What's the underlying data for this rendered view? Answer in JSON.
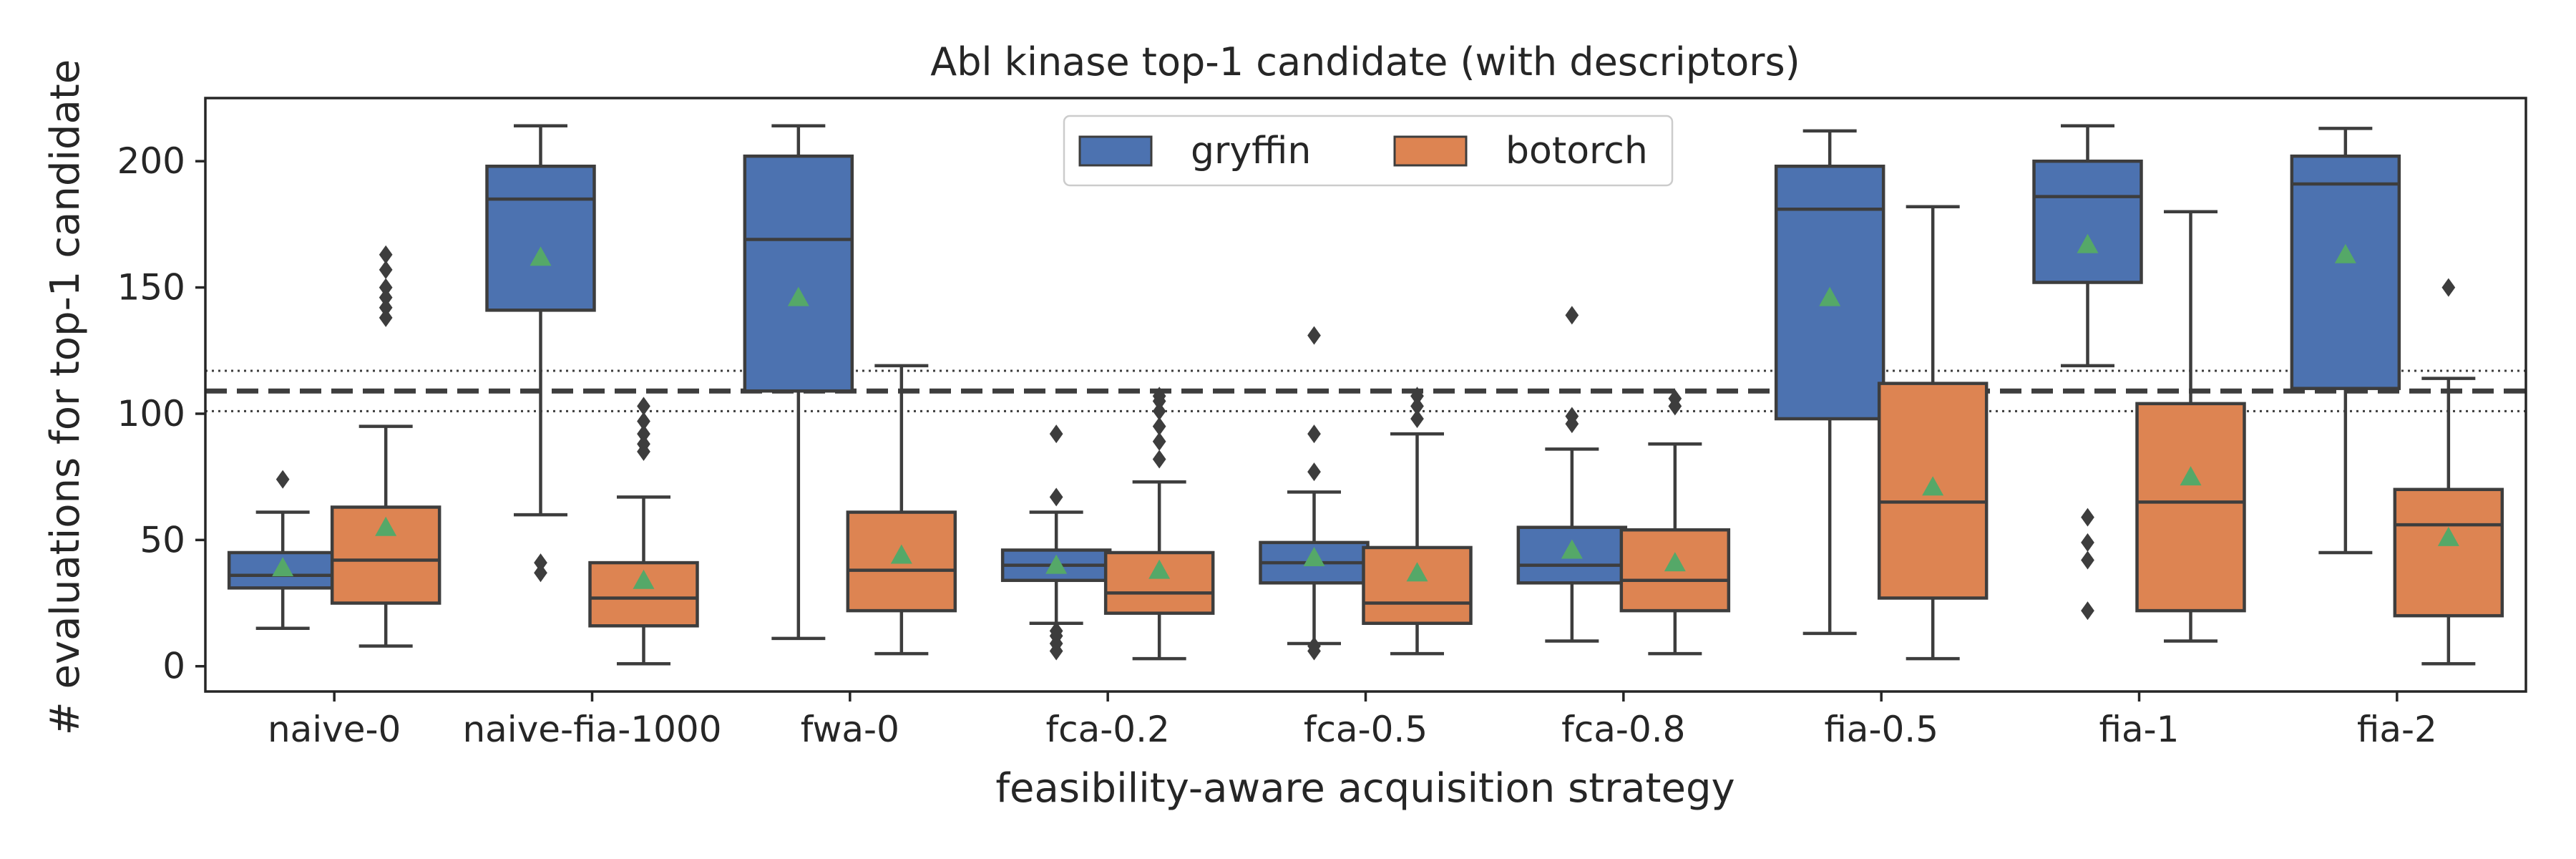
{
  "chart_data": {
    "type": "box",
    "title": "Abl kinase top-1 candidate (with descriptors)",
    "xlabel": "feasibility-aware acquisition strategy",
    "ylabel": "# evaluations for top-1 candidate",
    "ylim": [
      -10,
      225
    ],
    "yticks": [
      0,
      50,
      100,
      150,
      200
    ],
    "grid": false,
    "legend_position": "top-center",
    "reference": {
      "mean": 109,
      "lower": 101,
      "upper": 117
    },
    "categories": [
      "naive-0",
      "naive-fia-1000",
      "fwa-0",
      "fca-0.2",
      "fca-0.5",
      "fca-0.8",
      "fia-0.5",
      "fia-1",
      "fia-2"
    ],
    "colors": {
      "gryffin": "#4c72b0",
      "botorch": "#dd8452",
      "mean_marker": "#55a868",
      "line": "#3d3d3d"
    },
    "series": [
      {
        "name": "gryffin",
        "boxes": [
          {
            "whislo": 15,
            "q1": 31,
            "med": 36,
            "q3": 45,
            "whishi": 61,
            "mean": 39,
            "fliers": [
              74
            ]
          },
          {
            "whislo": 60,
            "q1": 141,
            "med": 185,
            "q3": 198,
            "whishi": 214,
            "mean": 162,
            "fliers": [
              37,
              41
            ]
          },
          {
            "whislo": 11,
            "q1": 109,
            "med": 169,
            "q3": 202,
            "whishi": 214,
            "mean": 146,
            "fliers": []
          },
          {
            "whislo": 17,
            "q1": 34,
            "med": 40,
            "q3": 46,
            "whishi": 61,
            "mean": 40,
            "fliers": [
              6,
              9,
              12,
              14,
              67,
              92
            ]
          },
          {
            "whislo": 9,
            "q1": 33,
            "med": 41,
            "q3": 49,
            "whishi": 69,
            "mean": 43,
            "fliers": [
              6,
              8,
              77,
              92,
              131
            ]
          },
          {
            "whislo": 10,
            "q1": 33,
            "med": 40,
            "q3": 55,
            "whishi": 86,
            "mean": 46,
            "fliers": [
              96,
              99,
              139
            ]
          },
          {
            "whislo": 13,
            "q1": 98,
            "med": 181,
            "q3": 198,
            "whishi": 212,
            "mean": 146,
            "fliers": []
          },
          {
            "whislo": 119,
            "q1": 152,
            "med": 186,
            "q3": 200,
            "whishi": 214,
            "mean": 167,
            "fliers": [
              22,
              42,
              49,
              59
            ]
          },
          {
            "whislo": 45,
            "q1": 110,
            "med": 191,
            "q3": 202,
            "whishi": 213,
            "mean": 163,
            "fliers": []
          }
        ]
      },
      {
        "name": "botorch",
        "boxes": [
          {
            "whislo": 8,
            "q1": 25,
            "med": 42,
            "q3": 63,
            "whishi": 95,
            "mean": 55,
            "fliers": [
              138,
              142,
              146,
              150,
              157,
              163
            ]
          },
          {
            "whislo": 1,
            "q1": 16,
            "med": 27,
            "q3": 41,
            "whishi": 67,
            "mean": 34,
            "fliers": [
              85,
              88,
              92,
              97,
              103
            ]
          },
          {
            "whislo": 5,
            "q1": 22,
            "med": 38,
            "q3": 61,
            "whishi": 119,
            "mean": 44,
            "fliers": []
          },
          {
            "whislo": 3,
            "q1": 21,
            "med": 29,
            "q3": 45,
            "whishi": 73,
            "mean": 38,
            "fliers": [
              82,
              89,
              95,
              101,
              105,
              107
            ]
          },
          {
            "whislo": 5,
            "q1": 17,
            "med": 25,
            "q3": 47,
            "whishi": 92,
            "mean": 37,
            "fliers": [
              98,
              103,
              107
            ]
          },
          {
            "whislo": 5,
            "q1": 22,
            "med": 34,
            "q3": 54,
            "whishi": 88,
            "mean": 41,
            "fliers": [
              103,
              106
            ]
          },
          {
            "whislo": 3,
            "q1": 27,
            "med": 65,
            "q3": 112,
            "whishi": 182,
            "mean": 71,
            "fliers": []
          },
          {
            "whislo": 10,
            "q1": 22,
            "med": 65,
            "q3": 104,
            "whishi": 180,
            "mean": 75,
            "fliers": []
          },
          {
            "whislo": 1,
            "q1": 20,
            "med": 56,
            "q3": 70,
            "whishi": 114,
            "mean": 51,
            "fliers": [
              150
            ]
          }
        ]
      }
    ]
  }
}
